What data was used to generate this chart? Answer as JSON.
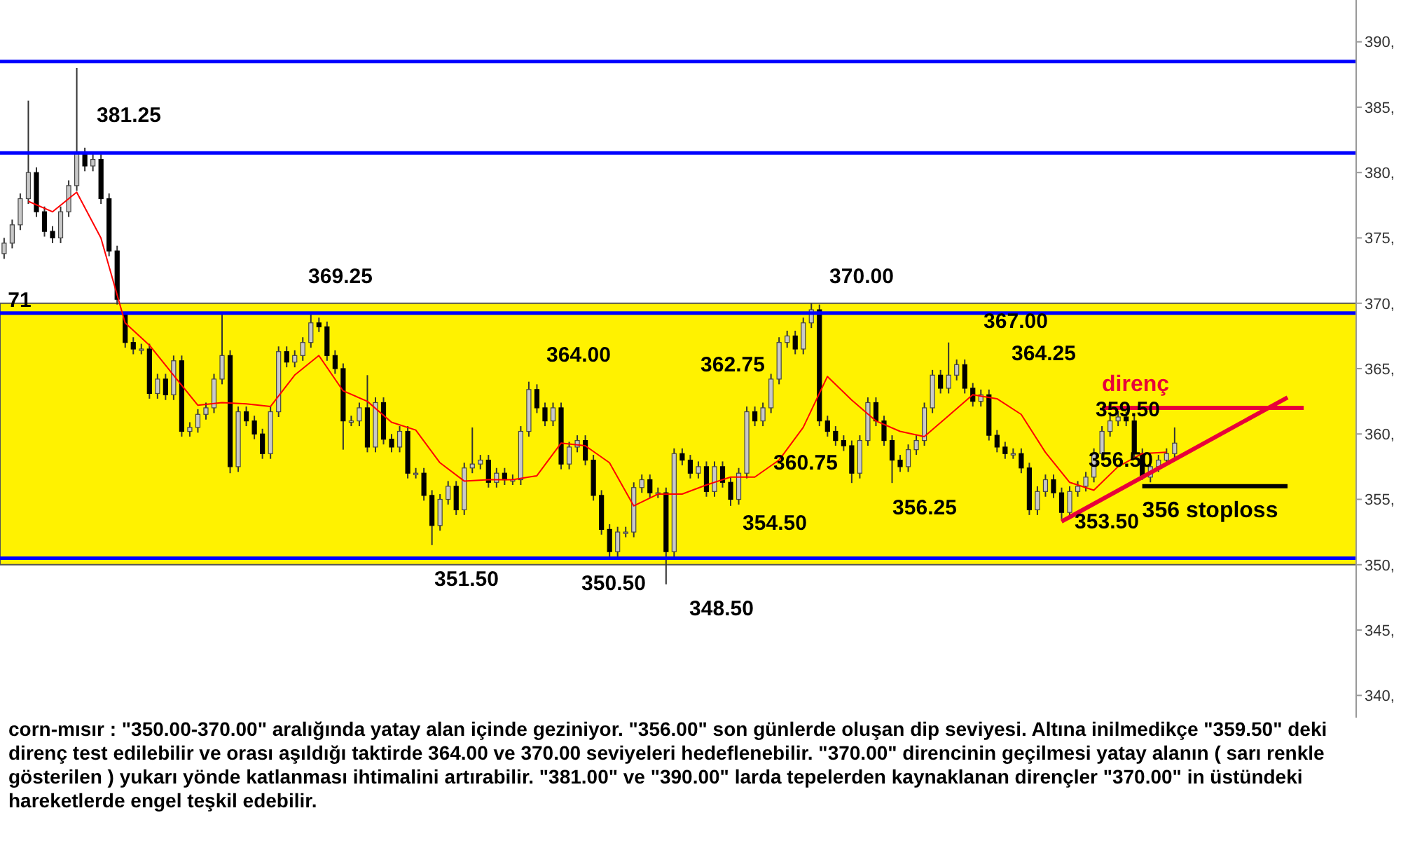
{
  "chart_data": {
    "type": "candlestick",
    "categories": [
      null,
      null,
      null,
      null,
      null,
      null,
      null,
      null,
      null,
      null,
      null,
      null,
      null,
      null,
      null,
      null,
      null,
      null,
      null,
      null,
      null,
      null,
      null,
      null,
      null,
      null,
      null,
      null,
      null,
      null,
      null,
      null,
      null,
      null,
      null,
      null,
      null,
      null,
      null,
      null,
      null,
      null,
      null,
      null,
      null,
      null,
      null,
      null,
      null,
      null,
      null,
      null,
      null,
      null,
      null,
      null,
      null,
      null,
      null,
      null,
      null,
      null,
      null,
      null,
      null,
      null,
      null,
      null,
      null,
      null,
      null,
      null,
      null,
      null,
      null,
      null,
      null,
      null,
      null,
      null,
      null,
      null,
      null,
      null,
      null,
      null,
      null,
      null,
      null,
      null,
      null,
      null,
      null,
      null,
      null,
      null,
      null,
      null,
      null,
      null,
      null,
      null,
      null,
      null,
      null,
      null,
      null,
      null,
      null,
      null,
      null,
      null,
      null,
      null,
      null,
      null,
      null,
      null,
      null,
      null,
      null,
      null,
      null,
      null,
      null,
      null,
      null,
      null,
      null,
      null,
      null,
      null,
      null,
      null,
      null,
      null,
      null,
      null,
      null,
      null,
      null,
      null,
      null,
      null,
      null,
      null,
      null,
      null,
      null,
      null,
      null,
      null,
      null,
      null,
      null,
      null,
      null,
      null,
      null,
      null,
      null,
      null,
      null,
      null,
      null,
      null,
      null,
      null
    ],
    "ohlc": [
      [
        373.8,
        375,
        373.4,
        374.6
      ],
      [
        374.6,
        376.4,
        374.2,
        376
      ],
      [
        376,
        378.4,
        375.6,
        378
      ],
      [
        378,
        385.5,
        377.6,
        380
      ],
      [
        380,
        380.4,
        376.6,
        377
      ],
      [
        377,
        377.4,
        375.1,
        375.5
      ],
      [
        375.5,
        375.9,
        374.6,
        375
      ],
      [
        375,
        377.4,
        374.6,
        377
      ],
      [
        377,
        379.4,
        376.6,
        379
      ],
      [
        379,
        388,
        378.6,
        381.5
      ],
      [
        381.5,
        381.9,
        380.1,
        380.5
      ],
      [
        380.5,
        381.4,
        380.1,
        381
      ],
      [
        381,
        381.4,
        377.6,
        378
      ],
      [
        378,
        378.4,
        373.6,
        374
      ],
      [
        374,
        374.4,
        369.9,
        370.3
      ],
      [
        369.25,
        369.25,
        366.6,
        367
      ],
      [
        367,
        367.4,
        366.1,
        366.5
      ],
      [
        366.5,
        366.9,
        366.1,
        366.5
      ],
      [
        366.5,
        366.9,
        362.7,
        363.1
      ],
      [
        363.1,
        364.6,
        362.7,
        364.2
      ],
      [
        364.2,
        364.6,
        362.6,
        363
      ],
      [
        363,
        366,
        362.6,
        365.6
      ],
      [
        365.6,
        366,
        359.8,
        360.2
      ],
      [
        360.2,
        360.9,
        359.8,
        360.5
      ],
      [
        360.5,
        361.9,
        360.1,
        361.5
      ],
      [
        361.5,
        362.4,
        361.1,
        362
      ],
      [
        362,
        364.6,
        361.6,
        364.2
      ],
      [
        364.2,
        369.25,
        363.8,
        366
      ],
      [
        366,
        366.4,
        357,
        357.5
      ],
      [
        357.5,
        362.1,
        357.1,
        361.7
      ],
      [
        361.7,
        362.1,
        360.6,
        361
      ],
      [
        361,
        361.4,
        359.6,
        360
      ],
      [
        360,
        360.4,
        358.1,
        358.5
      ],
      [
        358.5,
        362.1,
        358.1,
        361.7
      ],
      [
        361.7,
        366.7,
        361.3,
        366.3
      ],
      [
        366.3,
        366.7,
        365.1,
        365.5
      ],
      [
        365.5,
        366.4,
        365.1,
        366
      ],
      [
        366,
        367.4,
        365.6,
        367
      ],
      [
        367,
        369.25,
        366.6,
        368.5
      ],
      [
        368.5,
        368.9,
        367.8,
        368.2
      ],
      [
        368.2,
        368.6,
        365.6,
        366
      ],
      [
        366,
        366.4,
        364.6,
        365
      ],
      [
        365,
        365.4,
        358.8,
        361
      ],
      [
        361,
        361.4,
        360.6,
        361
      ],
      [
        361,
        362.4,
        360.6,
        362
      ],
      [
        362,
        364.5,
        358.6,
        359
      ],
      [
        359,
        362.8,
        358.6,
        362.4
      ],
      [
        362.4,
        362.8,
        359.2,
        359.6
      ],
      [
        359.6,
        360,
        358.6,
        359
      ],
      [
        359,
        360.6,
        358.6,
        360.2
      ],
      [
        360.2,
        360.6,
        356.6,
        357
      ],
      [
        357,
        357.4,
        356.6,
        357
      ],
      [
        357,
        357.4,
        354.9,
        355.3
      ],
      [
        355.3,
        355.7,
        351.5,
        353
      ],
      [
        353,
        355.4,
        352.6,
        355
      ],
      [
        355,
        356.4,
        354.6,
        356
      ],
      [
        356,
        356.4,
        353.8,
        354.2
      ],
      [
        354.2,
        357.8,
        353.8,
        357.4
      ],
      [
        357.4,
        360.5,
        357,
        357.7
      ],
      [
        357.7,
        358.4,
        357.3,
        358
      ],
      [
        358,
        358.4,
        355.9,
        356.3
      ],
      [
        356.3,
        357.4,
        355.9,
        357
      ],
      [
        357,
        357.4,
        356.1,
        356.5
      ],
      [
        356.5,
        356.9,
        356.1,
        356.5
      ],
      [
        356.5,
        360.6,
        356.1,
        360.2
      ],
      [
        360.2,
        364,
        359.8,
        363.4
      ],
      [
        363.4,
        363.8,
        361.6,
        362
      ],
      [
        362,
        362.4,
        360.6,
        361
      ],
      [
        361,
        362.4,
        360.6,
        362
      ],
      [
        362,
        362.4,
        357.3,
        357.7
      ],
      [
        357.7,
        359.4,
        357.3,
        359
      ],
      [
        359,
        359.9,
        358.6,
        359.5
      ],
      [
        359.5,
        359.9,
        357.6,
        358
      ],
      [
        358,
        358.4,
        354.9,
        355.3
      ],
      [
        355.3,
        355.7,
        352.3,
        352.7
      ],
      [
        352.7,
        353.1,
        350.5,
        351
      ],
      [
        351,
        352.9,
        350.6,
        352.5
      ],
      [
        352.5,
        352.9,
        352.1,
        352.5
      ],
      [
        352.5,
        356.3,
        352.1,
        355.9
      ],
      [
        355.9,
        356.9,
        355.5,
        356.5
      ],
      [
        356.5,
        356.9,
        355.1,
        355.5
      ],
      [
        355.5,
        355.9,
        355.1,
        355.5
      ],
      [
        355.5,
        355.9,
        348.5,
        351
      ],
      [
        351,
        358.9,
        350.6,
        358.5
      ],
      [
        358.5,
        358.9,
        357.6,
        358
      ],
      [
        358,
        358.4,
        356.6,
        357
      ],
      [
        357,
        357.9,
        356.6,
        357.5
      ],
      [
        357.5,
        357.9,
        355.2,
        355.6
      ],
      [
        355.6,
        357.9,
        355.2,
        357.5
      ],
      [
        357.5,
        357.9,
        355.9,
        356.3
      ],
      [
        356.3,
        356.7,
        354.5,
        355
      ],
      [
        355,
        357.4,
        354.6,
        357
      ],
      [
        357,
        362.1,
        356.6,
        361.7
      ],
      [
        361.7,
        362.1,
        360.6,
        361
      ],
      [
        361,
        362.4,
        360.6,
        362
      ],
      [
        362,
        364.6,
        361.6,
        364.2
      ],
      [
        364.2,
        367.4,
        363.8,
        367
      ],
      [
        367,
        367.9,
        366.6,
        367.5
      ],
      [
        367.5,
        367.9,
        366.1,
        366.5
      ],
      [
        366.5,
        368.9,
        366.1,
        368.5
      ],
      [
        368.5,
        370,
        368.1,
        369.5
      ],
      [
        369.5,
        369.9,
        360.6,
        361
      ],
      [
        361,
        361.4,
        359.8,
        360.2
      ],
      [
        360.2,
        360.6,
        359.1,
        359.5
      ],
      [
        359.5,
        359.9,
        358.7,
        359.1
      ],
      [
        359.1,
        359.5,
        356.25,
        357
      ],
      [
        357,
        359.9,
        356.6,
        359.5
      ],
      [
        359.5,
        362.8,
        359.1,
        362.4
      ],
      [
        362.4,
        362.8,
        360.6,
        361
      ],
      [
        361,
        361.4,
        359.1,
        359.5
      ],
      [
        359.5,
        359.9,
        356.25,
        358
      ],
      [
        358,
        358.4,
        357.1,
        357.5
      ],
      [
        357.5,
        359.2,
        357.1,
        358.8
      ],
      [
        358.8,
        359.9,
        358.4,
        359.5
      ],
      [
        359.5,
        362.4,
        359.1,
        362
      ],
      [
        362,
        364.9,
        361.6,
        364.5
      ],
      [
        364.5,
        364.9,
        363.1,
        363.5
      ],
      [
        363.5,
        367,
        363.1,
        364.5
      ],
      [
        364.5,
        365.7,
        364.1,
        365.3
      ],
      [
        365.3,
        365.7,
        363.1,
        363.5
      ],
      [
        363.5,
        363.9,
        362.1,
        362.5
      ],
      [
        362.5,
        363.4,
        362.1,
        363
      ],
      [
        363,
        363.4,
        359.5,
        359.9
      ],
      [
        359.9,
        360.3,
        358.6,
        359
      ],
      [
        359,
        359.4,
        358.1,
        358.5
      ],
      [
        358.5,
        358.9,
        358.1,
        358.5
      ],
      [
        358.5,
        358.9,
        357,
        357.4
      ],
      [
        357.4,
        357.8,
        353.8,
        354.2
      ],
      [
        354.2,
        356,
        353.8,
        355.6
      ],
      [
        355.6,
        356.9,
        355.2,
        356.5
      ],
      [
        356.5,
        356.9,
        355.1,
        355.5
      ],
      [
        355.5,
        355.9,
        353.5,
        354
      ],
      [
        354,
        356,
        353.6,
        355.6
      ],
      [
        355.6,
        356.4,
        355.2,
        356
      ],
      [
        356,
        357.1,
        355.6,
        356.7
      ],
      [
        356.7,
        358.9,
        356.3,
        358.5
      ],
      [
        358.5,
        360.6,
        358.1,
        360.2
      ],
      [
        360.2,
        361.4,
        359.8,
        361
      ],
      [
        361,
        361.75,
        360.6,
        361.3
      ],
      [
        361.3,
        361.7,
        360.6,
        361
      ],
      [
        361,
        361.4,
        358.1,
        358.5
      ],
      [
        358.5,
        358.9,
        356.5,
        356.7
      ],
      [
        356.7,
        357.9,
        356.3,
        357.5
      ],
      [
        357.5,
        358.4,
        357.1,
        358
      ],
      [
        358,
        358.9,
        357.6,
        358.5
      ],
      [
        358.5,
        360.5,
        358.1,
        359.3
      ],
      null,
      null,
      null,
      null,
      null,
      null,
      null,
      null,
      null,
      null,
      null,
      null,
      null,
      null,
      null,
      null,
      null,
      null,
      null,
      null,
      null,
      null
    ],
    "series": [
      {
        "type": "line",
        "color": "#ff0000",
        "values": [
          null,
          null,
          null,
          377.8,
          null,
          null,
          377,
          null,
          null,
          378.5,
          null,
          null,
          375,
          null,
          null,
          368.5,
          null,
          null,
          366.8,
          null,
          null,
          364.5,
          null,
          null,
          362.2,
          null,
          null,
          362.4,
          null,
          null,
          362.3,
          null,
          null,
          362.1,
          null,
          null,
          364.5,
          null,
          null,
          366,
          null,
          null,
          363.3,
          null,
          null,
          362.5,
          null,
          null,
          360.9,
          null,
          null,
          360.3,
          null,
          null,
          357.8,
          null,
          null,
          356.4,
          null,
          null,
          356.5,
          null,
          null,
          356.5,
          null,
          null,
          356.8,
          null,
          null,
          359.3,
          null,
          null,
          359.1,
          null,
          null,
          357.8,
          null,
          null,
          354.5,
          null,
          null,
          355.4,
          null,
          null,
          355.4,
          null,
          null,
          356.1,
          null,
          null,
          356.7,
          null,
          null,
          356.7,
          null,
          null,
          358,
          null,
          null,
          360.5,
          null,
          null,
          364.4,
          null,
          null,
          362.6,
          null,
          null,
          361,
          null,
          null,
          360.2,
          null,
          null,
          359.8,
          null,
          null,
          361.4,
          null,
          null,
          363,
          null,
          null,
          362.7,
          null,
          null,
          361.5,
          null,
          null,
          358.6,
          null,
          null,
          356.3,
          null,
          null,
          355.7,
          null,
          null,
          357.5,
          null,
          null,
          358.5,
          null,
          null,
          358.6,
          null,
          null,
          null,
          null,
          null,
          null,
          null,
          null,
          null,
          null,
          null,
          null,
          null,
          null,
          null,
          null,
          null,
          null,
          null,
          null,
          null,
          null,
          null
        ]
      },
      {
        "type": "line",
        "color": "#e8003a",
        "values": [
          null,
          null,
          null,
          null,
          null,
          null,
          null,
          null,
          null,
          null,
          null,
          null,
          null,
          null,
          null,
          null,
          null,
          null,
          null,
          null,
          null,
          null,
          null,
          null,
          null,
          null,
          null,
          null,
          null,
          null,
          null,
          null,
          null,
          null,
          null,
          null,
          null,
          null,
          null,
          null,
          null,
          null,
          null,
          null,
          null,
          null,
          null,
          null,
          null,
          null,
          null,
          null,
          null,
          null,
          null,
          null,
          null,
          null,
          null,
          null,
          null,
          null,
          null,
          null,
          null,
          null,
          null,
          null,
          null,
          null,
          null,
          null,
          null,
          null,
          null,
          null,
          null,
          null,
          null,
          null,
          null,
          null,
          null,
          null,
          null,
          null,
          null,
          null,
          null,
          null,
          null,
          null,
          null,
          null,
          null,
          null,
          null,
          null,
          null,
          null,
          null,
          null,
          null,
          null,
          null,
          null,
          null,
          null,
          null,
          null,
          null,
          null,
          null,
          null,
          null,
          null,
          null,
          null,
          null,
          null,
          null,
          null,
          null,
          null,
          null,
          null,
          null,
          null,
          null,
          null,
          null,
          353.3,
          null,
          null,
          null,
          null,
          null,
          null,
          null,
          null,
          null,
          null,
          null,
          null,
          null,
          null,
          null,
          null,
          null,
          null,
          null,
          null,
          null,
          null,
          null,
          null,
          null,
          null,
          null,
          362.8,
          null,
          null,
          null,
          null,
          null,
          null,
          null,
          null
        ]
      },
      {
        "type": "line",
        "name": "direnç",
        "color": "#e8003a",
        "values": [
          null,
          null,
          null,
          null,
          null,
          null,
          null,
          null,
          null,
          null,
          null,
          null,
          null,
          null,
          null,
          null,
          null,
          null,
          null,
          null,
          null,
          null,
          null,
          null,
          null,
          null,
          null,
          null,
          null,
          null,
          null,
          null,
          null,
          null,
          null,
          null,
          null,
          null,
          null,
          null,
          null,
          null,
          null,
          null,
          null,
          null,
          null,
          null,
          null,
          null,
          null,
          null,
          null,
          null,
          null,
          null,
          null,
          null,
          null,
          null,
          null,
          null,
          null,
          null,
          null,
          null,
          null,
          null,
          null,
          null,
          null,
          null,
          null,
          null,
          null,
          null,
          null,
          null,
          null,
          null,
          null,
          null,
          null,
          null,
          null,
          null,
          null,
          null,
          null,
          null,
          null,
          null,
          null,
          null,
          null,
          null,
          null,
          null,
          null,
          null,
          null,
          null,
          null,
          null,
          null,
          null,
          null,
          null,
          null,
          null,
          null,
          null,
          null,
          null,
          null,
          null,
          null,
          null,
          null,
          null,
          null,
          null,
          null,
          null,
          null,
          null,
          null,
          null,
          null,
          null,
          null,
          null,
          null,
          null,
          null,
          null,
          362,
          null,
          null,
          null,
          null,
          null,
          null,
          null,
          null,
          null,
          null,
          null,
          null,
          null,
          null,
          null,
          null,
          null,
          null,
          null,
          null,
          null,
          null,
          null,
          null,
          362,
          null,
          null,
          null,
          null,
          null,
          null
        ]
      },
      {
        "type": "line",
        "name": "356 stoploss",
        "color": "#000000",
        "values": [
          null,
          null,
          null,
          null,
          null,
          null,
          null,
          null,
          null,
          null,
          null,
          null,
          null,
          null,
          null,
          null,
          null,
          null,
          null,
          null,
          null,
          null,
          null,
          null,
          null,
          null,
          null,
          null,
          null,
          null,
          null,
          null,
          null,
          null,
          null,
          null,
          null,
          null,
          null,
          null,
          null,
          null,
          null,
          null,
          null,
          null,
          null,
          null,
          null,
          null,
          null,
          null,
          null,
          null,
          null,
          null,
          null,
          null,
          null,
          null,
          null,
          null,
          null,
          null,
          null,
          null,
          null,
          null,
          null,
          null,
          null,
          null,
          null,
          null,
          null,
          null,
          null,
          null,
          null,
          null,
          null,
          null,
          null,
          null,
          null,
          null,
          null,
          null,
          null,
          null,
          null,
          null,
          null,
          null,
          null,
          null,
          null,
          null,
          null,
          null,
          null,
          null,
          null,
          null,
          null,
          null,
          null,
          null,
          null,
          null,
          null,
          null,
          null,
          null,
          null,
          null,
          null,
          null,
          null,
          null,
          null,
          null,
          null,
          null,
          null,
          null,
          null,
          null,
          null,
          null,
          null,
          null,
          null,
          null,
          null,
          null,
          null,
          null,
          null,
          null,
          null,
          356,
          null,
          null,
          null,
          null,
          null,
          null,
          null,
          null,
          null,
          null,
          null,
          null,
          null,
          null,
          null,
          null,
          null,
          356,
          null,
          null,
          null,
          null,
          null,
          null,
          null,
          null
        ]
      }
    ],
    "ref_lines": [
      {
        "axis": "y",
        "value": 388.5,
        "color": "#0000ff"
      },
      {
        "axis": "y",
        "value": 381.5,
        "color": "#0000ff"
      },
      {
        "axis": "y",
        "value": 369.25,
        "color": "#0000ff"
      },
      {
        "axis": "y",
        "value": 350.5,
        "color": "#0000ff"
      }
    ],
    "bands": [
      {
        "axis": "y",
        "from": 350,
        "to": 370,
        "color": "#fff200"
      }
    ],
    "ylim": [
      338.3,
      393.2
    ],
    "yticks": [
      {
        "value": 340,
        "label": "340,"
      },
      {
        "value": 345,
        "label": "345,"
      },
      {
        "value": 350,
        "label": "350,"
      },
      {
        "value": 355,
        "label": "355,"
      },
      {
        "value": 360,
        "label": "360,"
      },
      {
        "value": 365,
        "label": "365,"
      },
      {
        "value": 370,
        "label": "370,"
      },
      {
        "value": 375,
        "label": "375,"
      },
      {
        "value": 380,
        "label": "380,"
      },
      {
        "value": 385,
        "label": "385,"
      },
      {
        "value": 390,
        "label": "390,"
      }
    ],
    "tick_labels": "y",
    "annotations": [
      "381.25",
      "71",
      "369.25",
      "364.00",
      "362.75",
      "370.00",
      "367.00",
      "364.25",
      "360.75",
      "359.50",
      "356.50",
      "354.50",
      "356.25",
      "353.50",
      "351.50",
      "350.50",
      "348.50",
      "corn-mısır : \"350.00-370.00\" aralığında yatay alan içinde geziniyor. \"356.00\" son günlerde oluşan dip seviyesi. Altına inilmedikçe \"359.50\" deki direnç test edilebilir ve orası aşıldığı taktirde 364.00 ve 370.00 seviyeleri hedeflenebilir. \"370.00\" direncinin geçilmesi yatay alanın ( sarı renkle gösterilen ) yukarı yönde katlanması ihtimalini artırabilir. \"381.00\" ve \"390.00\" larda tepelerden kaynaklanan dirençler \"370.00\" in üstündeki hareketlerde engel teşkil edebilir."
    ]
  }
}
